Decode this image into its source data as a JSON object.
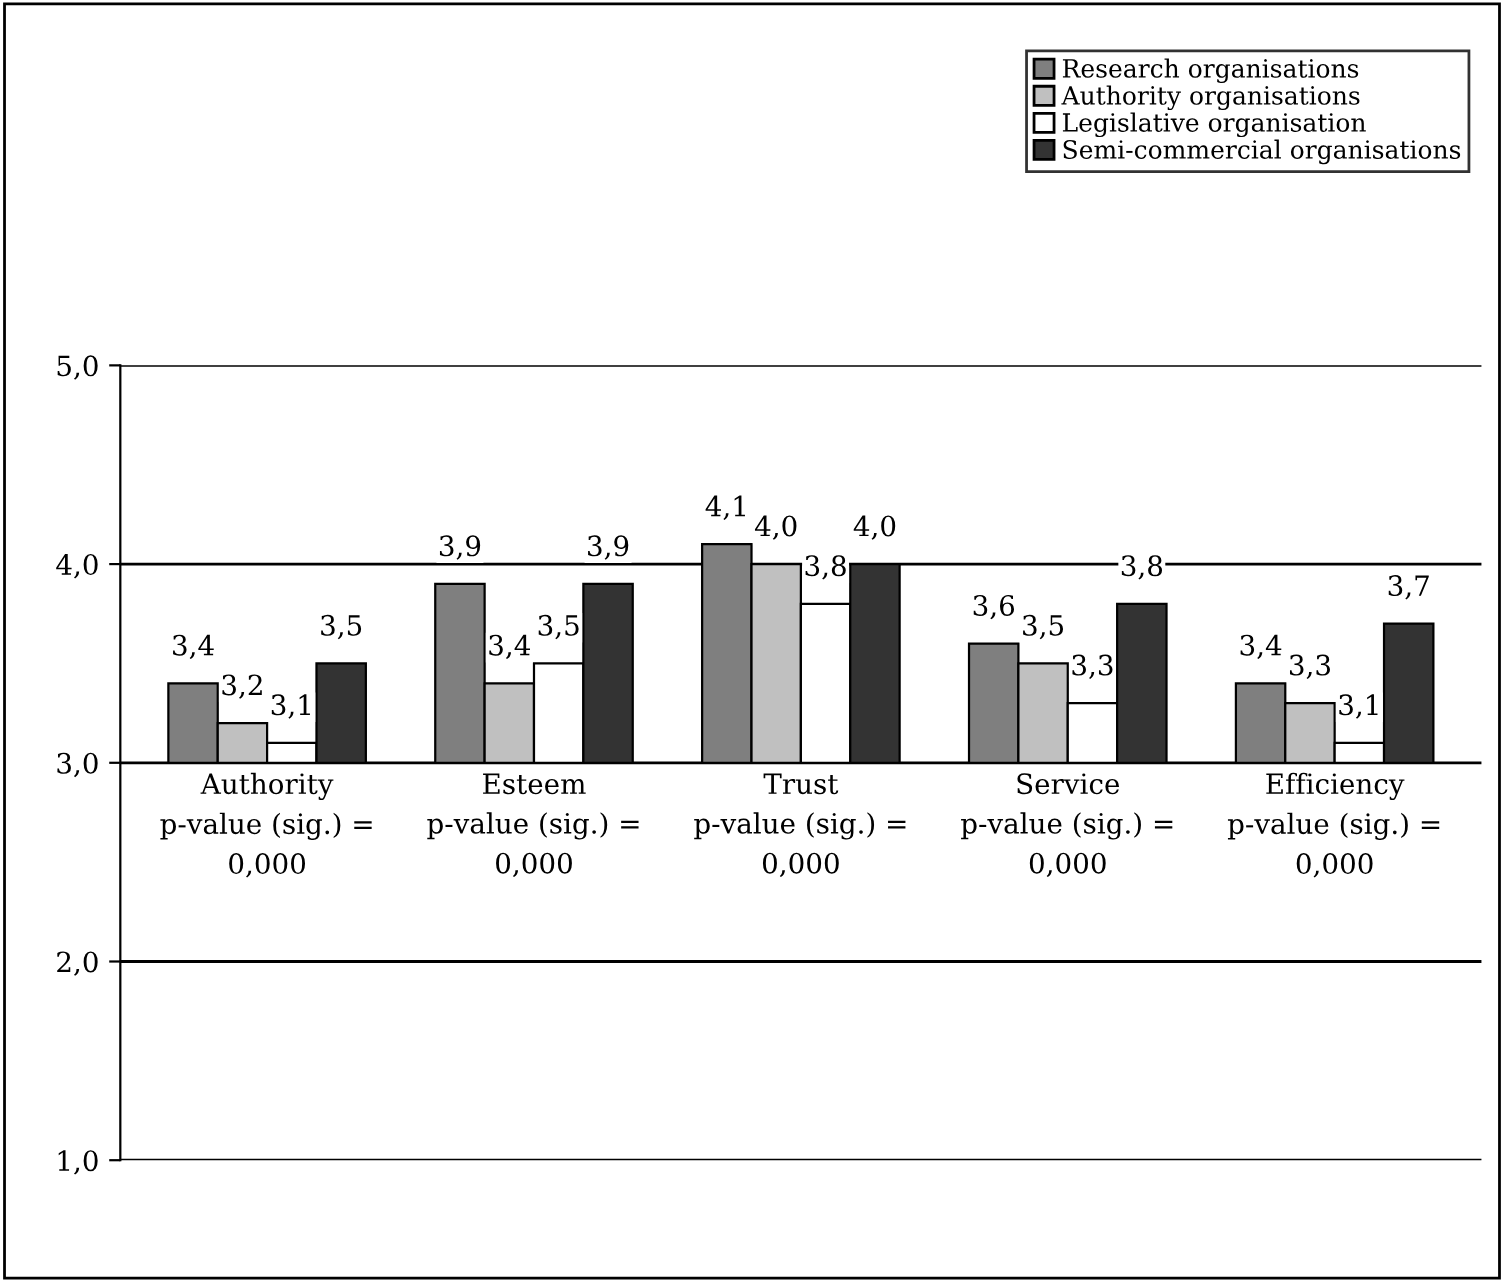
{
  "chart_data": {
    "type": "bar",
    "categories": [
      "Authority\np-value (sig.) =\n0,000",
      "Esteem\np-value (sig.) =\n0,000",
      "Trust\np-value (sig.) =\n0,000",
      "Service\np-value (sig.) =\n0,000",
      "Efficiency\np-value (sig.) =\n0,000"
    ],
    "series": [
      {
        "name": "Research organisations",
        "color": "#7f7f7f",
        "base": [
          3.0,
          3.0,
          3.0,
          3.0,
          3.0
        ],
        "values": [
          0.4,
          0.9,
          1.1,
          0.6,
          0.4
        ],
        "value_labels": [
          "3,4",
          "3,9",
          "4,1",
          "3,6",
          "3,4"
        ]
      },
      {
        "name": "Authority organisations",
        "color": "#c0c0c0",
        "base": [
          3.0,
          3.0,
          3.0,
          3.0,
          3.0
        ],
        "values": [
          0.2,
          0.4,
          1.0,
          0.5,
          0.3
        ],
        "value_labels": [
          "3,2",
          "3,4",
          "4,0",
          "3,5",
          "3,3"
        ]
      },
      {
        "name": "Legislative organisation",
        "color": "#ffffff",
        "base": [
          3.0,
          3.0,
          3.0,
          3.0,
          3.0
        ],
        "values": [
          0.1,
          0.5,
          0.8,
          0.3,
          0.1
        ],
        "value_labels": [
          "3,1",
          "3,5",
          "3,8",
          "3,3",
          "3,1"
        ]
      },
      {
        "name": "Semi-commercial organisations",
        "color": "#333333",
        "base": [
          3.0,
          3.0,
          3.0,
          3.0,
          3.0
        ],
        "values": [
          0.5,
          0.9,
          1.0,
          0.8,
          0.7
        ],
        "value_labels": [
          "3,5",
          "3,9",
          "4,0",
          "3,8",
          "3,7"
        ]
      }
    ],
    "ylim": [
      1.0,
      5.0
    ],
    "yticks": [
      {
        "value": 1.0,
        "label": "1,0"
      },
      {
        "value": 2.0,
        "label": "2,0"
      },
      {
        "value": 3.0,
        "label": "3,0"
      },
      {
        "value": 4.0,
        "label": "4,0"
      },
      {
        "value": 5.0,
        "label": "5,0"
      }
    ],
    "grid": "y",
    "legend": "top right"
  }
}
